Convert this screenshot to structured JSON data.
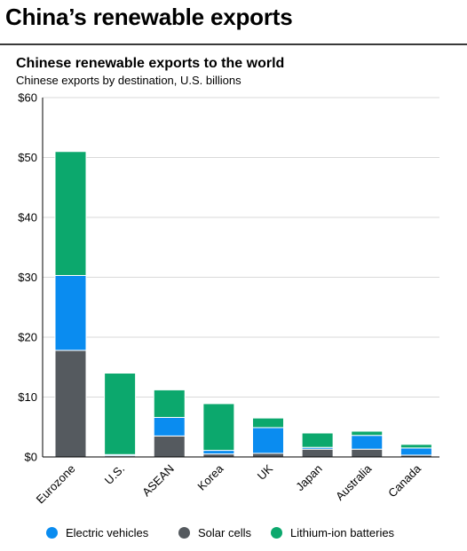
{
  "page": {
    "title": "China’s renewable exports"
  },
  "chart_data": {
    "type": "bar",
    "stacked": true,
    "title": "Chinese renewable exports to the world",
    "subtitle": "Chinese exports by destination, U.S. billions",
    "categories": [
      "Eurozone",
      "U.S.",
      "ASEAN",
      "Korea",
      "UK",
      "Japan",
      "Australia",
      "Canada"
    ],
    "series": [
      {
        "name": "Solar cells",
        "color": "#555a5f",
        "values": [
          17.8,
          0.2,
          3.5,
          0.5,
          0.6,
          1.3,
          1.3,
          0.3
        ]
      },
      {
        "name": "Electric vehicles",
        "color": "#0a8cf0",
        "values": [
          12.5,
          0.2,
          3.1,
          0.6,
          4.3,
          0.3,
          2.3,
          1.2
        ]
      },
      {
        "name": "Lithium-ion batteries",
        "color": "#0ca86d",
        "values": [
          20.7,
          13.6,
          4.6,
          7.8,
          1.6,
          2.4,
          0.7,
          0.6
        ]
      }
    ],
    "legend_order": [
      "Electric vehicles",
      "Solar cells",
      "Lithium-ion batteries"
    ],
    "ylim": [
      0,
      60
    ],
    "yticks": [
      0,
      10,
      20,
      30,
      40,
      50,
      60
    ],
    "ytick_labels": [
      "$0",
      "$10",
      "$20",
      "$30",
      "$40",
      "$50",
      "$60"
    ],
    "grid": true,
    "legend_position": "bottom"
  }
}
